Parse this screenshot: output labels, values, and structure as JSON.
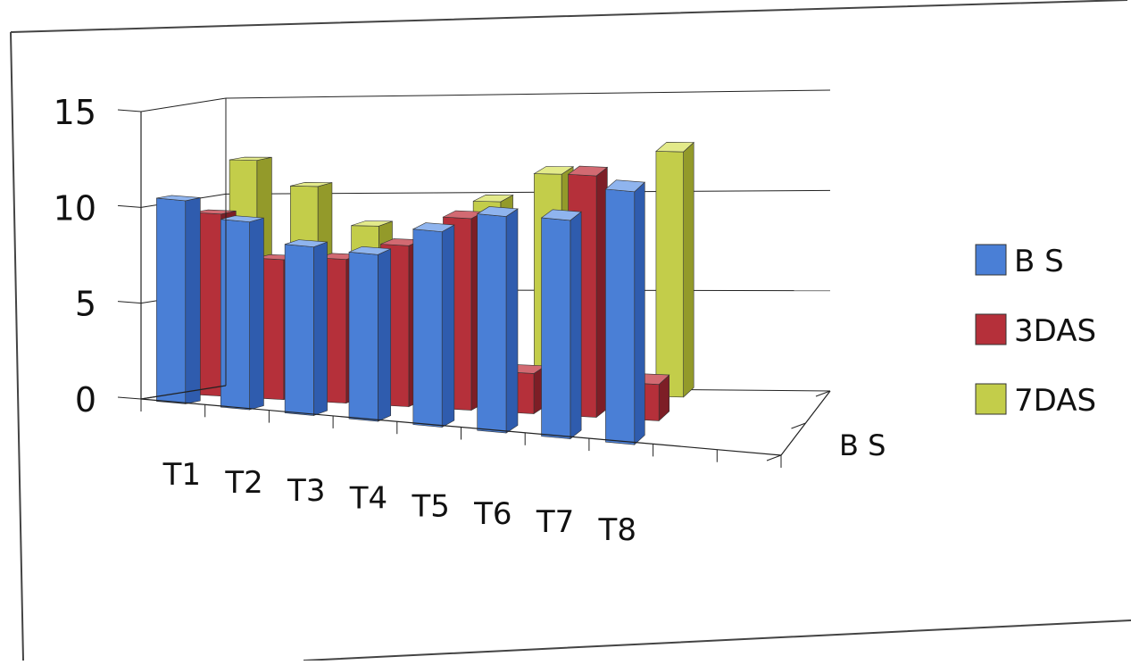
{
  "chart_data": {
    "type": "bar",
    "categories": [
      "T1",
      "T2",
      "T3",
      "T4",
      "T5",
      "T6",
      "T7",
      "T8"
    ],
    "depth_label": "B S",
    "series": [
      {
        "name": "B S",
        "values": [
          10.6,
          9.8,
          8.8,
          8.7,
          10.2,
          11.3,
          11.4,
          13.2
        ]
      },
      {
        "name": "3DAS",
        "values": [
          9.5,
          7.3,
          7.5,
          8.4,
          10.0,
          2.1,
          12.6,
          1.9
        ]
      },
      {
        "name": "7DAS",
        "values": [
          11.9,
          10.6,
          8.6,
          4.9,
          10.0,
          11.5,
          2.4,
          12.8
        ]
      }
    ],
    "yticks": [
      "0",
      "5",
      "10",
      "15"
    ],
    "ylim": [
      0,
      15
    ],
    "grid": true,
    "legend_position": "right"
  },
  "colors": {
    "B S": {
      "front": "#4a7fd6",
      "side": "#2f5cae",
      "top": "#8fb4ee"
    },
    "3DAS": {
      "front": "#b5303a",
      "side": "#7d1e26",
      "top": "#d26a72"
    },
    "7DAS": {
      "front": "#c3cd4a",
      "side": "#939a2a",
      "top": "#e3ea8a"
    }
  }
}
